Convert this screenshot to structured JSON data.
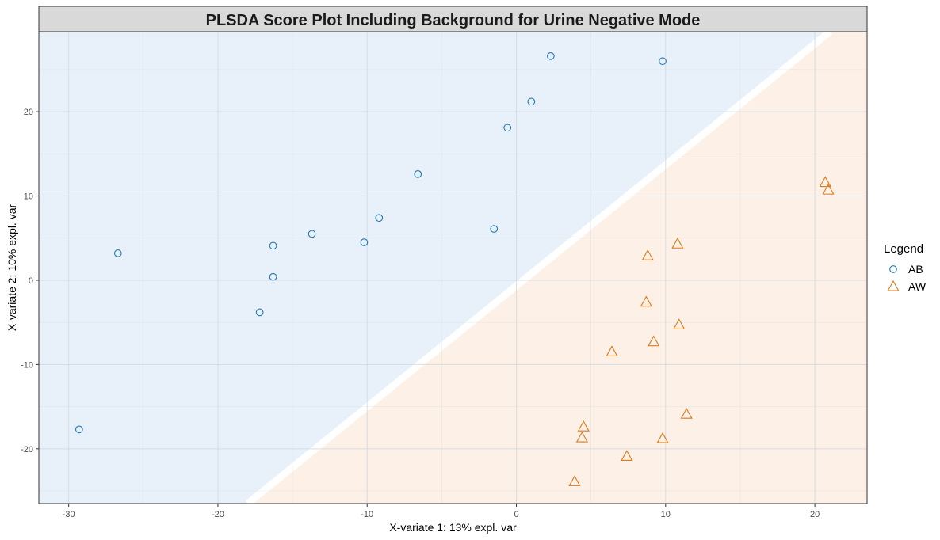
{
  "chart_data": {
    "type": "scatter",
    "title": "PLSDA Score Plot Including Background for Urine Negative Mode",
    "xlabel": "X-variate 1: 13% expl. var",
    "ylabel": "X-variate 2: 10% expl. var",
    "xlim": [
      -32,
      23.5
    ],
    "ylim": [
      -26.5,
      29.5
    ],
    "xticks": [
      -30,
      -20,
      -10,
      0,
      10,
      20
    ],
    "yticks": [
      -20,
      -10,
      0,
      10,
      20
    ],
    "xtick_labels": [
      "-30",
      "-20",
      "-10",
      "0",
      "10",
      "20"
    ],
    "ytick_labels": [
      "-20",
      "-10",
      "0",
      "10",
      "20"
    ],
    "grid": true,
    "legend": {
      "title": "Legend",
      "position": "right"
    },
    "background_boundary": {
      "description_free": true,
      "line": [
        [
          -18,
          -26.5
        ],
        [
          21,
          29.5
        ]
      ],
      "upper_left_class": "AB",
      "lower_right_class": "AW"
    },
    "colors": {
      "AB": "#1f77b4",
      "AW": "#d97a1c",
      "AB_region": "#e8f1fa",
      "AW_region": "#fdf0e6",
      "title_strip": "#d9d9d9",
      "grid": "#d0d7de"
    },
    "series": [
      {
        "name": "AB",
        "marker": "circle",
        "points": [
          [
            -29.3,
            -17.7
          ],
          [
            -26.7,
            3.2
          ],
          [
            -17.2,
            -3.8
          ],
          [
            -16.3,
            4.1
          ],
          [
            -16.3,
            0.4
          ],
          [
            -13.7,
            5.5
          ],
          [
            -10.2,
            4.5
          ],
          [
            -9.2,
            7.4
          ],
          [
            -6.6,
            12.6
          ],
          [
            -1.5,
            6.1
          ],
          [
            -0.6,
            18.1
          ],
          [
            1.0,
            21.2
          ],
          [
            2.3,
            26.6
          ],
          [
            9.8,
            26.0
          ]
        ]
      },
      {
        "name": "AW",
        "marker": "triangle",
        "points": [
          [
            3.9,
            -23.9
          ],
          [
            4.4,
            -18.7
          ],
          [
            4.5,
            -17.4
          ],
          [
            6.4,
            -8.5
          ],
          [
            7.4,
            -20.9
          ],
          [
            8.7,
            -2.6
          ],
          [
            8.8,
            2.9
          ],
          [
            9.2,
            -7.3
          ],
          [
            9.8,
            -18.8
          ],
          [
            10.8,
            4.3
          ],
          [
            10.9,
            -5.3
          ],
          [
            11.4,
            -15.9
          ],
          [
            20.7,
            11.6
          ],
          [
            20.9,
            10.7
          ]
        ]
      }
    ]
  }
}
